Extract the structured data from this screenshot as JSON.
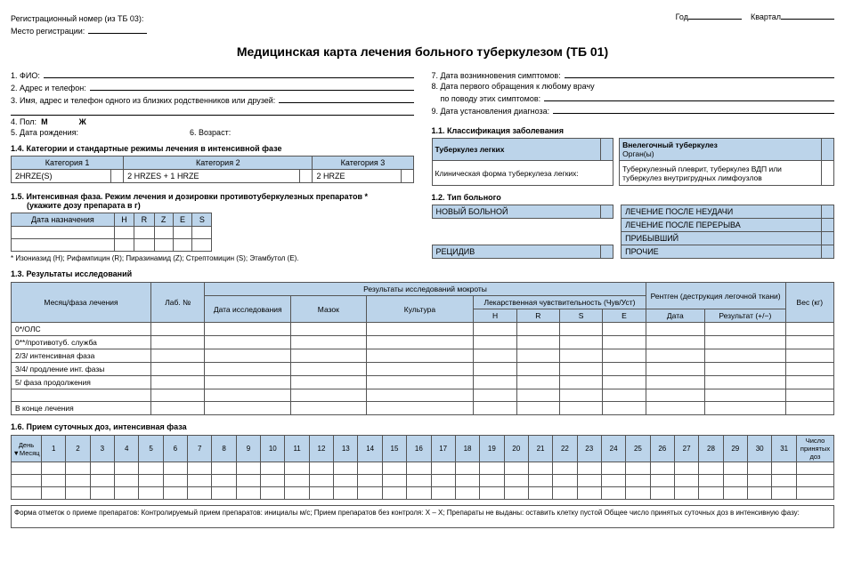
{
  "header": {
    "reg_label": "Регистрационный номер (из ТБ 03):",
    "place_label": "Место регистрации:",
    "year_label": "Год",
    "quarter_label": "Квартал"
  },
  "title": "Медицинская карта лечения больного туберкулезом (ТБ 01)",
  "left_fields": {
    "f1": "1. ФИО:",
    "f2": "2. Адрес и телефон:",
    "f3": "3. Имя, адрес и телефон одного из близких родственников или друзей:",
    "f4": "4. Пол:",
    "m": "М",
    "zh": "Ж",
    "f5": "5. Дата рождения:",
    "f6": "6. Возраст:"
  },
  "right_fields": {
    "f7": "7. Дата возникновения симптомов:",
    "f8a": "8. Дата первого обращения к любому врачу",
    "f8b": "по поводу этих симптомов:",
    "f9": "9. Дата установления диагноза:"
  },
  "sec14": {
    "head": "1.4. Категории и стандартные режимы лечения в интенсивной фазе",
    "c1": "Категория 1",
    "c2": "Категория 2",
    "c3": "Категория 3",
    "v1": "2HRZE(S)",
    "v2": "2 HRZES + 1 HRZE",
    "v3": "2 HRZE"
  },
  "sec15": {
    "head": "1.5. Интенсивная фаза.  Режим лечения и дозировки противотуберкулезных препаратов *",
    "sub": "(укажите дозу препарата в г)",
    "date_col": "Дата назначения",
    "drugs": [
      "H",
      "R",
      "Z",
      "E",
      "S"
    ],
    "note": "* Изониазид (H); Рифампицин (R); Пиразинамид (Z); Стрептомицин (S); Этамбутол (E)."
  },
  "sec11": {
    "head": "1.1. Классификация заболевания",
    "left_h": "Туберкулез легких",
    "right_h": "Внелегочный туберкулез",
    "organ": "Орган(ы)",
    "left_sub": "Клиническая форма туберкулеза легких:",
    "right_sub": "Туберкулезный плеврит, туберкулез ВДП или туберкулез внутригрудных лимфоузлов"
  },
  "sec12": {
    "head": "1.2. Тип больного",
    "left": [
      "НОВЫЙ БОЛЬНОЙ",
      "",
      "",
      "РЕЦИДИВ"
    ],
    "right": [
      "ЛЕЧЕНИЕ ПОСЛЕ НЕУДАЧИ",
      "ЛЕЧЕНИЕ ПОСЛЕ ПЕРЕРЫВА",
      "ПРИБЫВШИЙ",
      "ПРОЧИЕ"
    ]
  },
  "sec13": {
    "head": "1.3. Результаты исследований",
    "cols": {
      "phase": "Месяц/фаза лечения",
      "lab": "Лаб. №",
      "super": "Результаты исследований мокроты",
      "date": "Дата исследования",
      "smear": "Мазок",
      "culture": "Культура",
      "sens": "Лекарственная чувствительность (Чув/Уст)",
      "sens_sub": [
        "H",
        "R",
        "S",
        "E"
      ],
      "xray": "Рентген (деструкция легочной ткани)",
      "xray_sub": [
        "Дата",
        "Результат (+/−)"
      ],
      "weight": "Вес (кг)"
    },
    "rows": [
      "0*/ОЛС",
      "0**/противотуб. служба",
      "2/3/ интенсивная фаза",
      "3/4/ продление инт. фазы",
      "5/ фаза продолжения",
      "",
      "В конце лечения"
    ]
  },
  "sec16": {
    "head": "1.6. Прием суточных доз, интенсивная фаза",
    "day": "День",
    "month": "Месяц",
    "days": [
      "1",
      "2",
      "3",
      "4",
      "5",
      "6",
      "7",
      "8",
      "9",
      "10",
      "11",
      "12",
      "13",
      "14",
      "15",
      "16",
      "17",
      "18",
      "19",
      "20",
      "21",
      "22",
      "23",
      "24",
      "25",
      "26",
      "27",
      "28",
      "29",
      "30",
      "31"
    ],
    "last": "Число принятых доз"
  },
  "footer": "Форма отметок о приеме препаратов: Контролируемый прием препаратов: инициалы м/с; Прием препаратов без контроля: X – X; Препараты не выданы: оставить клетку пустой    Общее число принятых суточных доз в интенсивную фазу:"
}
